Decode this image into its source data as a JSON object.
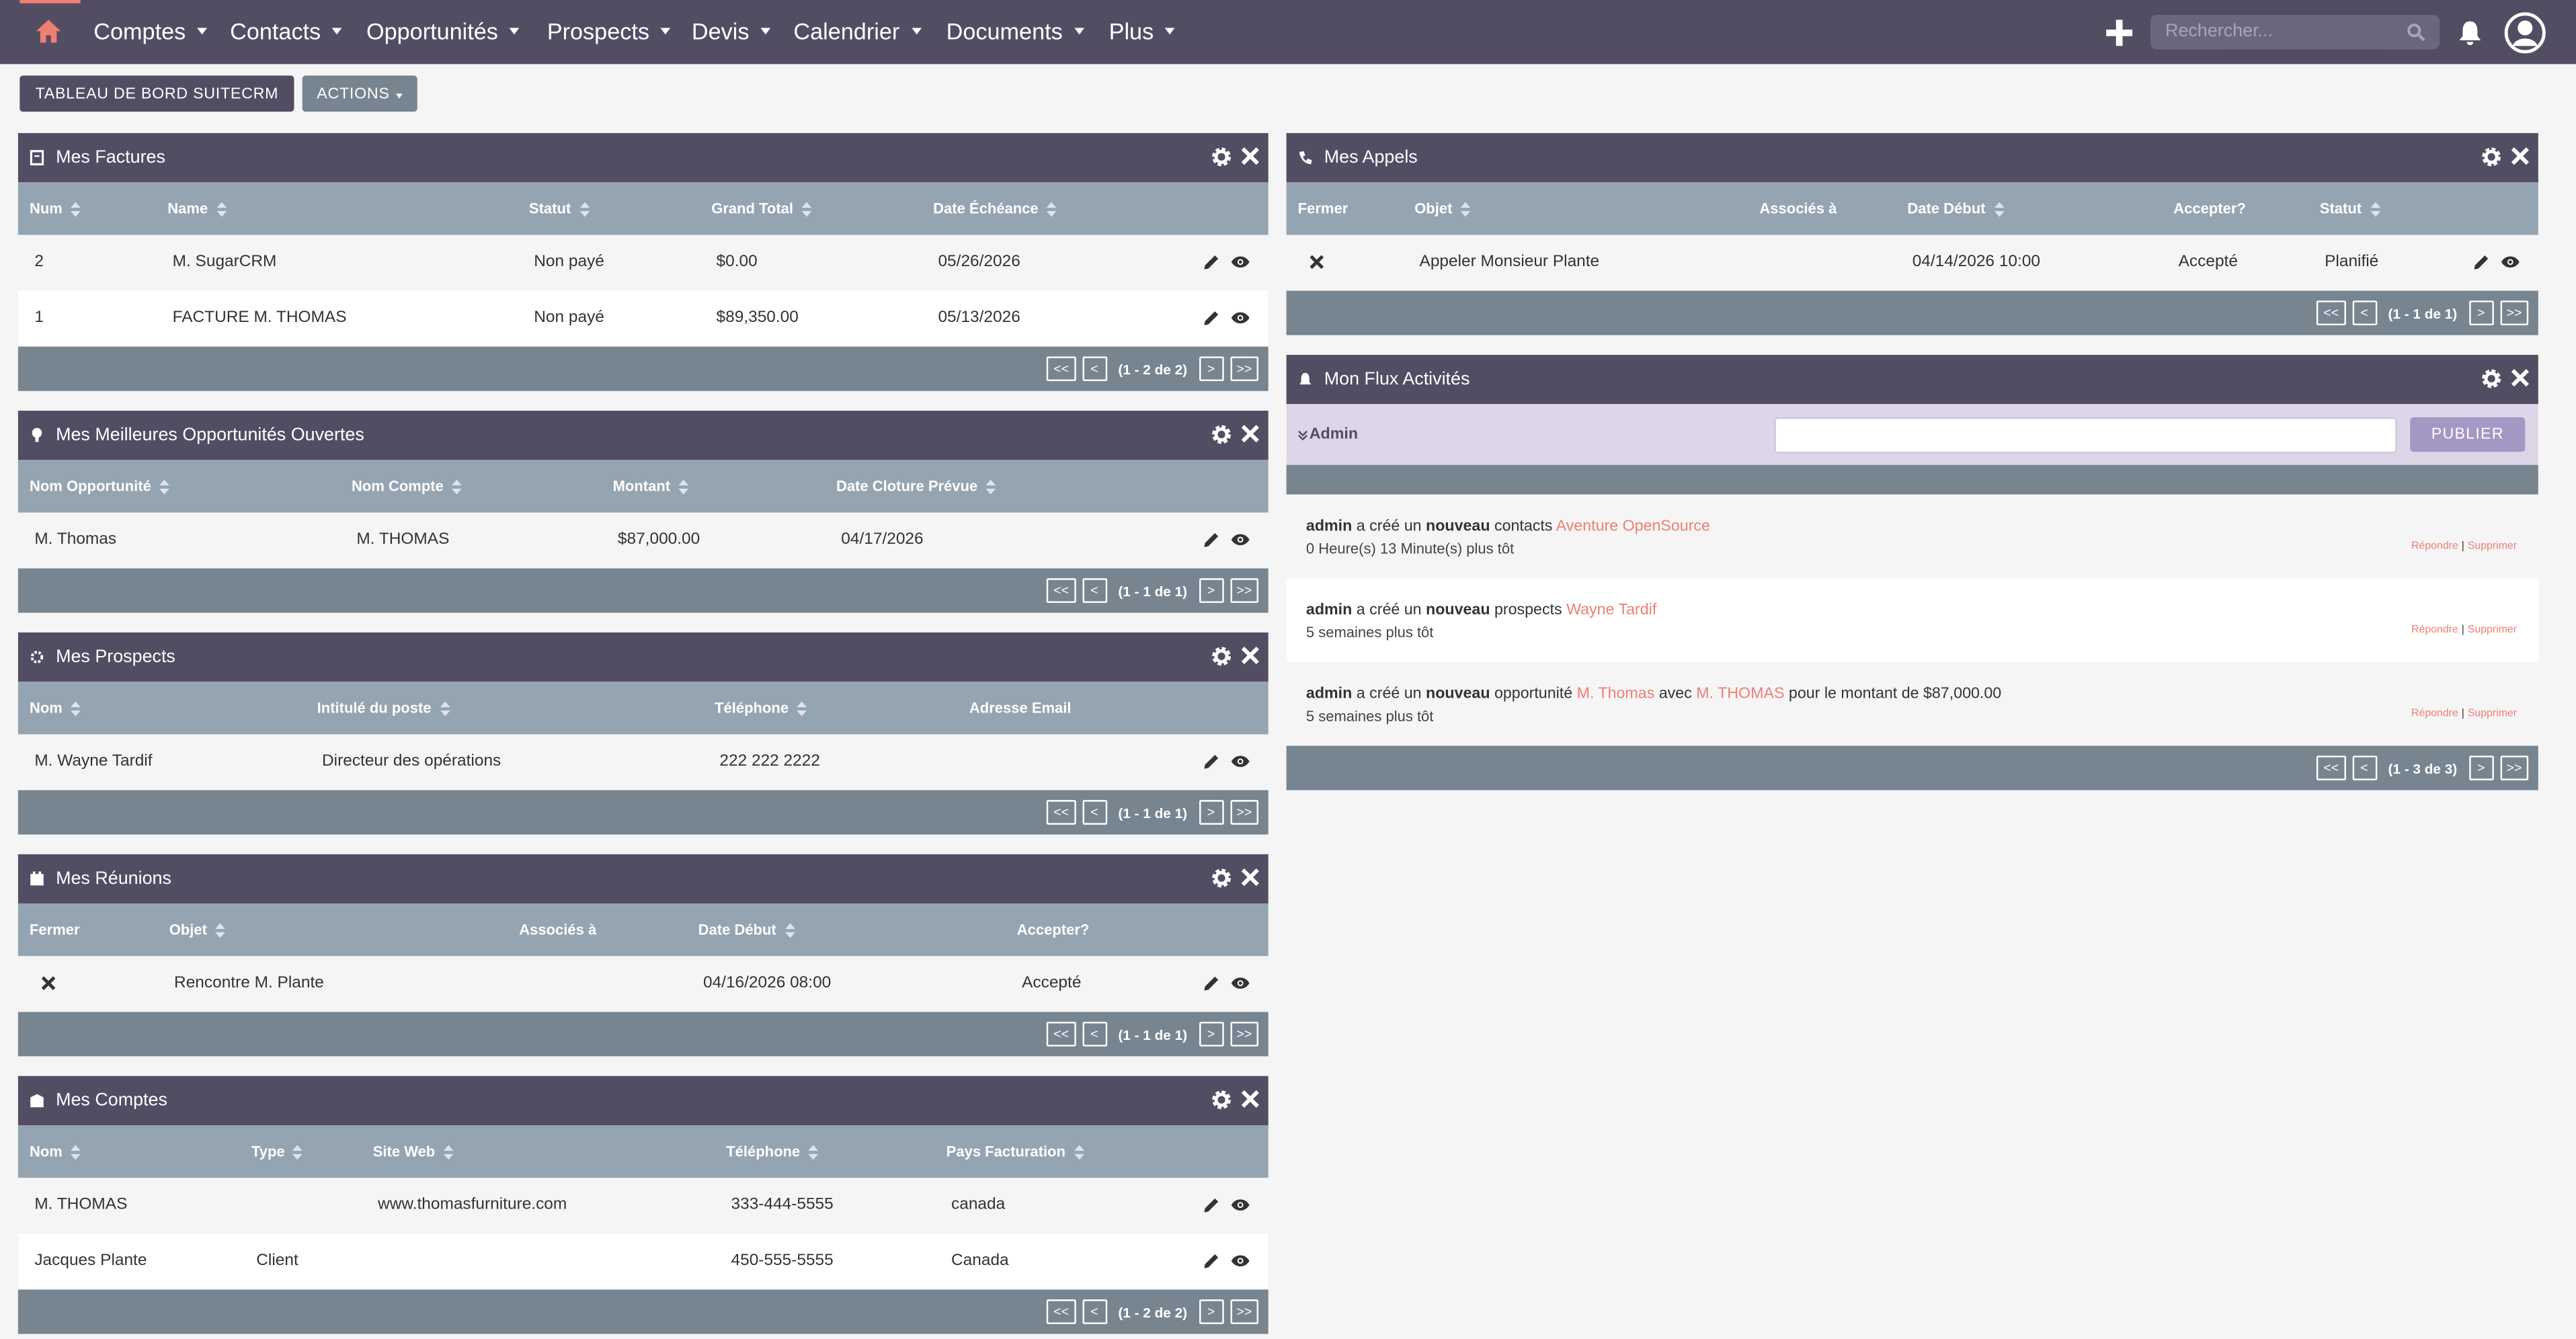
{
  "nav": {
    "menu": [
      "Comptes",
      "Contacts",
      "Opportunités",
      "Prospects",
      "Devis",
      "Calendrier",
      "Documents",
      "Plus"
    ],
    "search_placeholder": "Rechercher..."
  },
  "buttons": [
    "TABLEAU DE BORD SUITECRM",
    "ACTIONS"
  ],
  "pager_buttons": [
    "<<",
    "<",
    ">",
    ">>"
  ],
  "dashlets": [
    {
      "title": "Mes Factures",
      "columns": [
        "Num",
        "Name",
        "Statut",
        "Grand Total",
        "Date Échéance"
      ],
      "rows": [
        [
          "2",
          "M. SugarCRM",
          "Non payé",
          "$0.00",
          "05/26/2026"
        ],
        [
          "1",
          "FACTURE M. THOMAS",
          "Non payé",
          "$89,350.00",
          "05/13/2026"
        ]
      ],
      "pagination": "(1 - 2 de 2)"
    },
    {
      "title": "Mes Meilleures Opportunités Ouvertes",
      "columns": [
        "Nom Opportunité",
        "Nom Compte",
        "Montant",
        "Date Cloture Prévue"
      ],
      "rows": [
        [
          "M. Thomas",
          "M. THOMAS",
          "$87,000.00",
          "04/17/2026"
        ]
      ],
      "pagination": "(1 - 1 de 1)"
    },
    {
      "title": "Mes Prospects",
      "columns": [
        "Nom",
        "Intitulé du poste",
        "Téléphone",
        "Adresse Email"
      ],
      "rows": [
        [
          "M. Wayne Tardif",
          "Directeur des opérations",
          "222 222 2222",
          null
        ]
      ],
      "pagination": "(1 - 1 de 1)"
    },
    {
      "title": "Mes Réunions",
      "columns": [
        "Fermer",
        "Objet",
        "Associés à",
        "Date Début",
        "Accepter?"
      ],
      "rows": [
        [
          null,
          "Rencontre M. Plante",
          null,
          "04/16/2026 08:00",
          "Accepté"
        ]
      ],
      "pagination": "(1 - 1 de 1)"
    },
    {
      "title": "Mes Comptes",
      "columns": [
        "Nom",
        "Type",
        "Site Web",
        "Téléphone",
        "Pays Facturation"
      ],
      "rows": [
        [
          "M. THOMAS",
          null,
          "www.thomasfurniture.com",
          "333-444-5555",
          "canada"
        ],
        [
          "Jacques Plante",
          "Client",
          null,
          "450-555-5555",
          "Canada"
        ]
      ],
      "pagination": "(1 - 2 de 2)"
    },
    {
      "title": "Mes Appels",
      "columns": [
        "Fermer",
        "Objet",
        "Associés à",
        "Date Début",
        "Accepter?",
        "Statut"
      ],
      "rows": [
        [
          null,
          "Appeler Monsieur Plante",
          null,
          "04/14/2026 10:00",
          "Accepté",
          "Planifié"
        ]
      ],
      "pagination": "(1 - 1 de 1)"
    }
  ],
  "activity": {
    "title": "Mon Flux Activités",
    "user": "Admin",
    "publish": "PUBLIER",
    "reply": "Répondre",
    "separator": "|",
    "delete": "Supprimer",
    "pagination": "(1 - 3 de 3)",
    "entries": [
      {
        "segments": [
          {
            "text": "admin",
            "kind": "bold"
          },
          {
            "text": "a créé un",
            "kind": "text"
          },
          {
            "text": "nouveau",
            "kind": "bold"
          },
          {
            "text": "contacts",
            "kind": "text"
          },
          {
            "text": "Aventure OpenSource",
            "kind": "link"
          }
        ],
        "time": "0 Heure(s) 13 Minute(s) plus tôt"
      },
      {
        "segments": [
          {
            "text": "admin",
            "kind": "bold"
          },
          {
            "text": "a créé un",
            "kind": "text"
          },
          {
            "text": "nouveau",
            "kind": "bold"
          },
          {
            "text": "prospects",
            "kind": "text"
          },
          {
            "text": "Wayne Tardif",
            "kind": "link"
          }
        ],
        "time": "5 semaines plus tôt"
      },
      {
        "segments": [
          {
            "text": "admin",
            "kind": "bold"
          },
          {
            "text": "a créé un",
            "kind": "text"
          },
          {
            "text": "nouveau",
            "kind": "bold"
          },
          {
            "text": "opportunité",
            "kind": "text"
          },
          {
            "text": "M. Thomas",
            "kind": "link"
          },
          {
            "text": "avec",
            "kind": "text"
          },
          {
            "text": "M. THOMAS",
            "kind": "link"
          },
          {
            "text": "pour le montant de $87,000.00",
            "kind": "text"
          }
        ],
        "time": "5 semaines plus tôt"
      }
    ]
  }
}
